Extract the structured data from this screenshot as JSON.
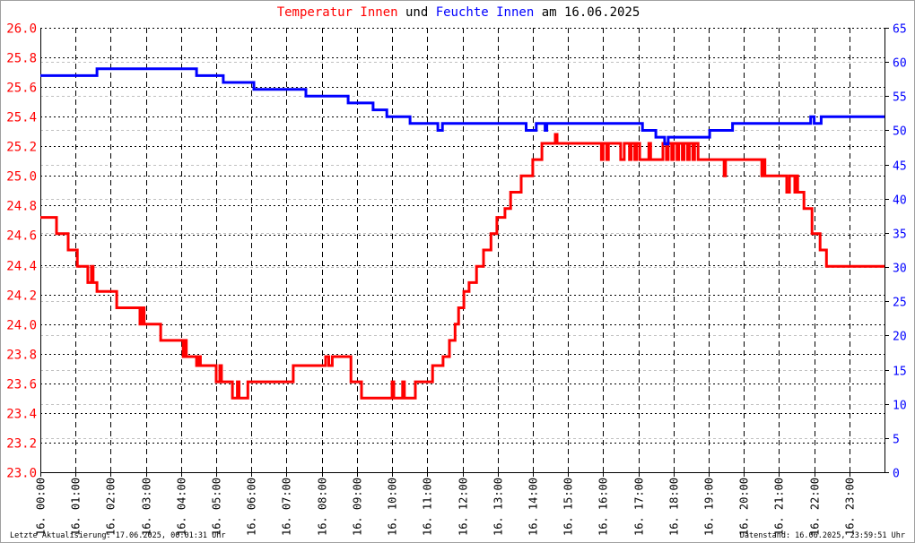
{
  "title": {
    "part1": "Temperatur Innen",
    "part2": " und ",
    "part3": "Feuchte Innen",
    "part4": " am 16.06.2025"
  },
  "footer": {
    "left": "Letzte Aktualisierung: 17.06.2025, 00:01:31 Uhr",
    "right": "Datenstand: 16.06.2025, 23:59:51 Uhr"
  },
  "colors": {
    "temperature": "#ff0000",
    "humidity": "#0000ff"
  },
  "chart_data": {
    "type": "line",
    "title": "Temperatur Innen und Feuchte Innen am 16.06.2025",
    "x_unit": "hour",
    "xlim": [
      0,
      24
    ],
    "x_tick_labels": [
      "16. 00:00",
      "16. 01:00",
      "16. 02:00",
      "16. 03:00",
      "16. 04:00",
      "16. 05:00",
      "16. 06:00",
      "16. 07:00",
      "16. 08:00",
      "16. 09:00",
      "16. 10:00",
      "16. 11:00",
      "16. 12:00",
      "16. 13:00",
      "16. 14:00",
      "16. 15:00",
      "16. 16:00",
      "16. 17:00",
      "16. 18:00",
      "16. 19:00",
      "16. 20:00",
      "16. 21:00",
      "16. 22:00",
      "16. 23:00"
    ],
    "y_left": {
      "label": "Temperatur Innen",
      "ylim": [
        23.0,
        26.0
      ],
      "step": 0.2,
      "tick_labels": [
        "23.0",
        "23.2",
        "23.4",
        "23.6",
        "23.8",
        "24.0",
        "24.2",
        "24.4",
        "24.6",
        "24.8",
        "25.0",
        "25.2",
        "25.4",
        "25.6",
        "25.8",
        "26.0"
      ]
    },
    "y_right": {
      "label": "Feuchte Innen",
      "ylim": [
        0,
        65
      ],
      "step": 5,
      "tick_labels": [
        "0",
        "5",
        "10",
        "15",
        "20",
        "25",
        "30",
        "35",
        "40",
        "45",
        "50",
        "55",
        "60",
        "65"
      ]
    },
    "grid": true,
    "series": [
      {
        "name": "Temperatur Innen",
        "axis": "left",
        "step": true,
        "points": [
          [
            0,
            24.72
          ],
          [
            0.46,
            24.61
          ],
          [
            0.79,
            24.5
          ],
          [
            1.05,
            24.39
          ],
          [
            1.35,
            24.28
          ],
          [
            1.45,
            24.39
          ],
          [
            1.5,
            24.28
          ],
          [
            1.61,
            24.22
          ],
          [
            2.17,
            24.11
          ],
          [
            2.83,
            24.0
          ],
          [
            2.9,
            24.11
          ],
          [
            2.95,
            24.0
          ],
          [
            3.42,
            23.89
          ],
          [
            4.06,
            23.78
          ],
          [
            4.1,
            23.89
          ],
          [
            4.15,
            23.78
          ],
          [
            4.44,
            23.72
          ],
          [
            4.5,
            23.78
          ],
          [
            4.55,
            23.72
          ],
          [
            5.0,
            23.61
          ],
          [
            5.1,
            23.72
          ],
          [
            5.15,
            23.61
          ],
          [
            5.46,
            23.5
          ],
          [
            5.6,
            23.61
          ],
          [
            5.65,
            23.5
          ],
          [
            5.9,
            23.61
          ],
          [
            5.97,
            23.61
          ],
          [
            7.19,
            23.72
          ],
          [
            8.11,
            23.78
          ],
          [
            8.2,
            23.72
          ],
          [
            8.3,
            23.78
          ],
          [
            8.83,
            23.61
          ],
          [
            9.13,
            23.5
          ],
          [
            10.0,
            23.61
          ],
          [
            10.05,
            23.5
          ],
          [
            10.3,
            23.61
          ],
          [
            10.35,
            23.5
          ],
          [
            10.66,
            23.61
          ],
          [
            11.15,
            23.72
          ],
          [
            11.45,
            23.78
          ],
          [
            11.63,
            23.89
          ],
          [
            11.79,
            24.0
          ],
          [
            11.89,
            24.11
          ],
          [
            12.04,
            24.22
          ],
          [
            12.19,
            24.28
          ],
          [
            12.4,
            24.39
          ],
          [
            12.6,
            24.5
          ],
          [
            12.81,
            24.61
          ],
          [
            12.98,
            24.72
          ],
          [
            13.21,
            24.78
          ],
          [
            13.37,
            24.89
          ],
          [
            13.67,
            25.0
          ],
          [
            14.0,
            25.11
          ],
          [
            14.26,
            25.22
          ],
          [
            14.64,
            25.28
          ],
          [
            14.69,
            25.22
          ],
          [
            15.95,
            25.11
          ],
          [
            16.0,
            25.22
          ],
          [
            16.1,
            25.11
          ],
          [
            16.15,
            25.22
          ],
          [
            16.5,
            25.11
          ],
          [
            16.6,
            25.22
          ],
          [
            16.75,
            25.11
          ],
          [
            16.8,
            25.22
          ],
          [
            16.9,
            25.11
          ],
          [
            16.95,
            25.22
          ],
          [
            17.04,
            25.11
          ],
          [
            17.3,
            25.22
          ],
          [
            17.35,
            25.11
          ],
          [
            17.7,
            25.22
          ],
          [
            17.8,
            25.11
          ],
          [
            17.85,
            25.22
          ],
          [
            17.95,
            25.11
          ],
          [
            18.0,
            25.22
          ],
          [
            18.1,
            25.11
          ],
          [
            18.15,
            25.22
          ],
          [
            18.25,
            25.11
          ],
          [
            18.3,
            25.22
          ],
          [
            18.4,
            25.11
          ],
          [
            18.45,
            25.22
          ],
          [
            18.55,
            25.11
          ],
          [
            18.6,
            25.22
          ],
          [
            18.7,
            25.11
          ],
          [
            19.44,
            25.0
          ],
          [
            19.48,
            25.11
          ],
          [
            20.51,
            25.0
          ],
          [
            20.55,
            25.11
          ],
          [
            20.6,
            25.0
          ],
          [
            21.22,
            24.89
          ],
          [
            21.3,
            25.0
          ],
          [
            21.45,
            24.89
          ],
          [
            21.5,
            25.0
          ],
          [
            21.53,
            24.89
          ],
          [
            21.71,
            24.78
          ],
          [
            21.94,
            24.61
          ],
          [
            22.17,
            24.5
          ],
          [
            22.35,
            24.39
          ],
          [
            24,
            24.39
          ]
        ]
      },
      {
        "name": "Feuchte Innen",
        "axis": "right",
        "step": true,
        "points": [
          [
            0,
            58
          ],
          [
            1.61,
            59
          ],
          [
            4.44,
            58
          ],
          [
            5.2,
            57
          ],
          [
            6.07,
            56
          ],
          [
            7.55,
            55
          ],
          [
            8.75,
            54
          ],
          [
            9.46,
            53
          ],
          [
            9.85,
            52
          ],
          [
            10.51,
            51
          ],
          [
            11.3,
            50
          ],
          [
            11.43,
            51
          ],
          [
            13.81,
            50
          ],
          [
            14.1,
            51
          ],
          [
            14.35,
            50
          ],
          [
            14.4,
            51
          ],
          [
            17.12,
            50
          ],
          [
            17.5,
            49
          ],
          [
            17.75,
            48
          ],
          [
            17.85,
            49
          ],
          [
            19.03,
            50
          ],
          [
            19.68,
            51
          ],
          [
            21.9,
            52
          ],
          [
            22.0,
            51
          ],
          [
            22.2,
            52
          ],
          [
            24,
            52
          ]
        ]
      }
    ]
  }
}
